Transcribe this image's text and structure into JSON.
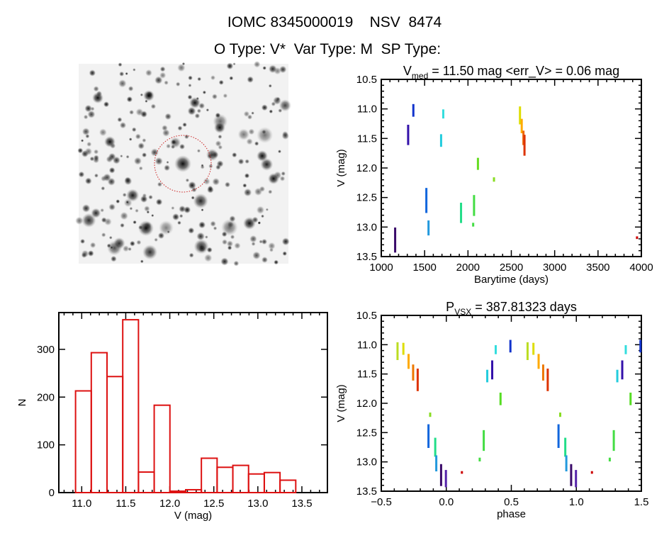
{
  "header": {
    "title": "IOMC 8345000019    NSV  8474",
    "subtitle": "O Type: V*  Var Type: M  SP Type:"
  },
  "colors": {
    "histogram": "#dd1111",
    "circle": "#cc2222",
    "axis": "#000000"
  },
  "chart_data": [
    {
      "type": "image",
      "description_label": "finding chart",
      "marker": "red dotted circle around target"
    },
    {
      "type": "scatter",
      "title_main": "V",
      "title_sub": "med",
      "title_rest": " = 11.50 mag <err_V> = 0.06 mag",
      "xlabel": "Barytime (days)",
      "ylabel": "V (mag)",
      "xlim": [
        1000,
        4000
      ],
      "ylim": [
        13.5,
        10.5
      ],
      "y_inverted": true,
      "xticks": [
        "1000",
        "1500",
        "2000",
        "2500",
        "3000",
        "3500",
        "4000"
      ],
      "yticks": [
        "10.5",
        "11.0",
        "11.5",
        "12.0",
        "12.5",
        "13.0",
        "13.5"
      ],
      "segments": [
        {
          "x": 1160,
          "ymin": 13.02,
          "ymax": 13.42,
          "color": "#3a0a6a"
        },
        {
          "x": 1310,
          "ymin": 11.28,
          "ymax": 11.6,
          "color": "#3311aa"
        },
        {
          "x": 1370,
          "ymin": 10.93,
          "ymax": 11.12,
          "color": "#1133cc"
        },
        {
          "x": 1520,
          "ymin": 12.35,
          "ymax": 12.75,
          "color": "#1166dd"
        },
        {
          "x": 1545,
          "ymin": 12.9,
          "ymax": 13.13,
          "color": "#2299dd"
        },
        {
          "x": 1690,
          "ymin": 11.44,
          "ymax": 11.63,
          "color": "#22ccdd"
        },
        {
          "x": 1715,
          "ymin": 11.02,
          "ymax": 11.15,
          "color": "#33dddd"
        },
        {
          "x": 1920,
          "ymin": 12.6,
          "ymax": 12.92,
          "color": "#22dd88"
        },
        {
          "x": 2060,
          "ymin": 12.94,
          "ymax": 12.98,
          "color": "#44dd44"
        },
        {
          "x": 2070,
          "ymin": 12.47,
          "ymax": 12.8,
          "color": "#44dd44"
        },
        {
          "x": 2115,
          "ymin": 11.84,
          "ymax": 12.02,
          "color": "#66dd22"
        },
        {
          "x": 2300,
          "ymin": 12.17,
          "ymax": 12.22,
          "color": "#88dd22"
        },
        {
          "x": 2600,
          "ymin": 10.97,
          "ymax": 11.25,
          "color": "#dddd00"
        },
        {
          "x": 2620,
          "ymin": 11.18,
          "ymax": 11.4,
          "color": "#ffaa00"
        },
        {
          "x": 2640,
          "ymin": 11.38,
          "ymax": 11.6,
          "color": "#ee6600"
        },
        {
          "x": 2652,
          "ymin": 11.45,
          "ymax": 11.78,
          "color": "#dd3300"
        },
        {
          "x": 3950,
          "ymin": 13.17,
          "ymax": 13.19,
          "color": "#cc0000"
        }
      ]
    },
    {
      "type": "bar",
      "xlabel": "V (mag)",
      "ylabel": "N",
      "xlim": [
        10.74,
        13.79
      ],
      "ylim": [
        0,
        377
      ],
      "xticks": [
        "11.0",
        "11.5",
        "12.0",
        "12.5",
        "13.0",
        "13.5"
      ],
      "yticks": [
        "0",
        "100",
        "200",
        "300"
      ],
      "bin_start": 10.93,
      "bin_width": 0.1786,
      "values": [
        213,
        293,
        243,
        362,
        43,
        183,
        3,
        6,
        72,
        53,
        57,
        39,
        42,
        26
      ]
    },
    {
      "type": "scatter",
      "title_main": "P",
      "title_sub": "VSX",
      "title_rest": " = 387.81323 days",
      "xlabel": "phase",
      "ylabel": "V (mag)",
      "xlim": [
        -0.5,
        1.5
      ],
      "ylim": [
        13.5,
        10.5
      ],
      "y_inverted": true,
      "xticks": [
        "−0.5",
        "0.0",
        "0.5",
        "1.0",
        "1.5"
      ],
      "yticks": [
        "10.5",
        "11.0",
        "11.5",
        "12.0",
        "12.5",
        "13.0",
        "13.5"
      ],
      "repeat_period": 1,
      "segments": [
        {
          "x": -0.375,
          "ymin": 10.97,
          "ymax": 11.25,
          "color": "#bbdd22"
        },
        {
          "x": -0.33,
          "ymin": 10.98,
          "ymax": 11.16,
          "color": "#dddd00"
        },
        {
          "x": -0.29,
          "ymin": 11.17,
          "ymax": 11.4,
          "color": "#ffaa00"
        },
        {
          "x": -0.255,
          "ymin": 11.35,
          "ymax": 11.6,
          "color": "#ee7700"
        },
        {
          "x": -0.22,
          "ymin": 11.42,
          "ymax": 11.78,
          "color": "#dd3300"
        },
        {
          "x": -0.137,
          "ymin": 12.37,
          "ymax": 12.75,
          "color": "#1166dd"
        },
        {
          "x": -0.124,
          "ymin": 12.17,
          "ymax": 12.22,
          "color": "#88dd22"
        },
        {
          "x": -0.085,
          "ymin": 12.6,
          "ymax": 12.9,
          "color": "#22dd88"
        },
        {
          "x": -0.077,
          "ymin": 12.9,
          "ymax": 13.15,
          "color": "#2299dd"
        },
        {
          "x": -0.04,
          "ymin": 13.05,
          "ymax": 13.4,
          "color": "#3a0a6a"
        },
        {
          "x": -0.003,
          "ymin": 13.15,
          "ymax": 13.42,
          "color": "#5522aa"
        },
        {
          "x": 0.12,
          "ymin": 13.17,
          "ymax": 13.19,
          "color": "#cc0000"
        },
        {
          "x": 0.257,
          "ymin": 12.94,
          "ymax": 12.98,
          "color": "#44dd44"
        },
        {
          "x": 0.288,
          "ymin": 12.47,
          "ymax": 12.8,
          "color": "#44dd44"
        },
        {
          "x": 0.315,
          "ymin": 11.44,
          "ymax": 11.63,
          "color": "#22ccdd"
        },
        {
          "x": 0.353,
          "ymin": 11.28,
          "ymax": 11.58,
          "color": "#3311aa"
        },
        {
          "x": 0.38,
          "ymin": 11.02,
          "ymax": 11.15,
          "color": "#33dddd"
        },
        {
          "x": 0.417,
          "ymin": 11.83,
          "ymax": 12.02,
          "color": "#55dd22"
        },
        {
          "x": 0.493,
          "ymin": 10.93,
          "ymax": 11.12,
          "color": "#1133cc"
        }
      ]
    }
  ]
}
